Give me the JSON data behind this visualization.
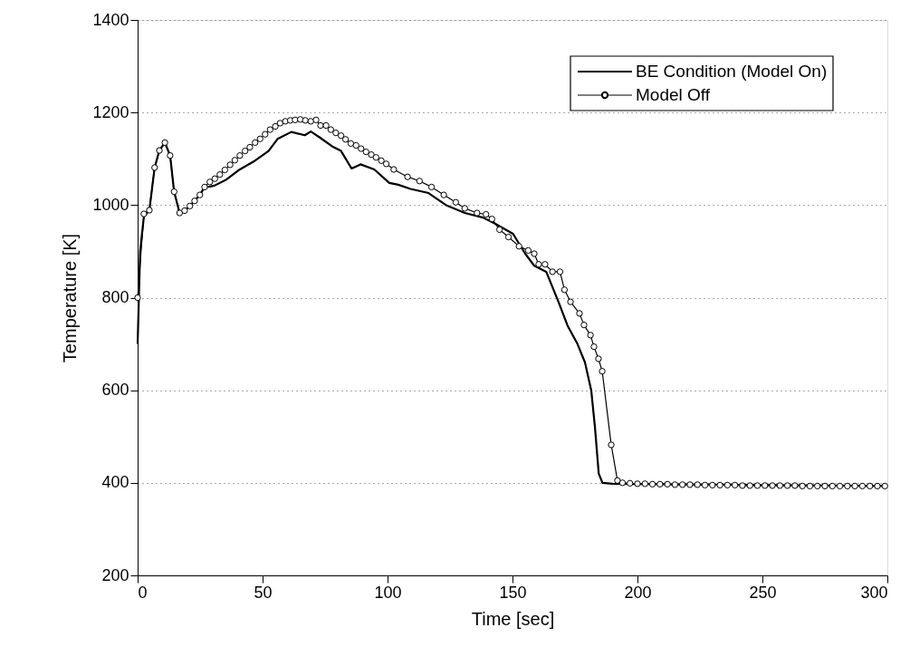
{
  "chart_data": {
    "type": "line",
    "xlabel": "Time [sec]",
    "ylabel": "Temperature [K]",
    "xlim": [
      0,
      300
    ],
    "xticks": [
      0,
      50,
      100,
      150,
      200,
      250,
      300
    ],
    "ylim": [
      200,
      1400
    ],
    "yticks": [
      200,
      400,
      600,
      800,
      1000,
      1200,
      1400
    ],
    "grid": "y",
    "legend": "top right",
    "line_style": "solid",
    "series": [
      {
        "name": "BE Condition (Model On)",
        "color": "#000000",
        "marker": "none",
        "x": [
          0,
          1,
          2.5,
          4.7,
          6.8,
          8.7,
          10.9,
          13,
          14.6,
          16.8,
          18.8,
          20.9,
          22.8,
          24.9,
          26.8,
          28.9,
          30.7,
          35.5,
          40.3,
          46.4,
          52.4,
          56,
          61.5,
          66.9,
          69.3,
          72.9,
          77.8,
          81.4,
          85.6,
          89.2,
          94.7,
          100.7,
          104.3,
          109.2,
          116.4,
          123.7,
          130.9,
          138.2,
          143,
          150.2,
          155.1,
          158.7,
          163.5,
          168.4,
          172,
          176,
          179,
          181.5,
          183,
          184.5,
          186,
          190,
          300
        ],
        "values": [
          700,
          900,
          975,
          989,
          1081,
          1118,
          1135,
          1107,
          1029,
          983,
          988,
          998,
          1009,
          1022,
          1039,
          1040,
          1042,
          1055,
          1075,
          1094,
          1117,
          1143,
          1158,
          1151,
          1159,
          1146,
          1127,
          1117,
          1079,
          1088,
          1077,
          1048,
          1044,
          1035,
          1026,
          999,
          983,
          973,
          960,
          938,
          895,
          869,
          856,
          791,
          740,
          700,
          660,
          600,
          520,
          420,
          400,
          398,
          393
        ]
      },
      {
        "name": "Model Off",
        "color": "#000000",
        "marker": "circle",
        "x": [
          0,
          2.5,
          4.7,
          6.8,
          8.7,
          10.9,
          13,
          14.6,
          16.8,
          18.8,
          20.9,
          22.8,
          24.9,
          26.8,
          28.9,
          30.9,
          32.9,
          34.9,
          37,
          38.9,
          40.9,
          43,
          44.9,
          47,
          49,
          51,
          53,
          55.1,
          57,
          59.1,
          61.1,
          63,
          65.1,
          67.1,
          69.3,
          71.4,
          73.2,
          75.4,
          77.3,
          79.3,
          81.4,
          83.2,
          85.3,
          87.4,
          89.4,
          91.4,
          93.5,
          95.4,
          97.5,
          99.5,
          102.5,
          108,
          112.8,
          117.6,
          122.5,
          127.3,
          130.9,
          135.8,
          139.4,
          141.8,
          144.8,
          148.4,
          152.6,
          156.3,
          158.7,
          160.5,
          163,
          166,
          169,
          170.8,
          173.2,
          176.8,
          178.6,
          181.2,
          182.6,
          184.4,
          185.9,
          189.5,
          192,
          194,
          197,
          200,
          203,
          206,
          209,
          212,
          215,
          218,
          221,
          224,
          227,
          230,
          233,
          236,
          239,
          242,
          245,
          248,
          251,
          254,
          257,
          260,
          263,
          266,
          269,
          272,
          275,
          278,
          281,
          284,
          287,
          290,
          293,
          296,
          299
        ],
        "values": [
          800,
          981,
          989,
          1081,
          1118,
          1135,
          1107,
          1029,
          983,
          988,
          998,
          1009,
          1022,
          1039,
          1050,
          1057,
          1066,
          1076,
          1087,
          1097,
          1107,
          1117,
          1125,
          1135,
          1143,
          1153,
          1163,
          1170,
          1177,
          1181,
          1183,
          1184,
          1185,
          1183,
          1181,
          1184,
          1172,
          1172,
          1163,
          1156,
          1150,
          1142,
          1133,
          1129,
          1122,
          1115,
          1109,
          1103,
          1096,
          1089,
          1077,
          1061,
          1052,
          1039,
          1022,
          1006,
          993,
          983,
          980,
          970,
          947,
          931,
          911,
          902,
          895,
          872,
          872,
          856,
          856,
          817,
          791,
          766,
          741,
          719,
          694,
          668,
          641,
          482,
          405,
          400,
          399,
          398,
          398,
          397,
          397,
          397,
          396,
          396,
          396,
          396,
          395,
          395,
          395,
          395,
          395,
          394,
          394,
          394,
          394,
          394,
          394,
          394,
          394,
          393,
          393,
          393,
          393,
          393,
          393,
          393,
          393,
          393,
          393,
          393,
          393
        ]
      }
    ]
  }
}
